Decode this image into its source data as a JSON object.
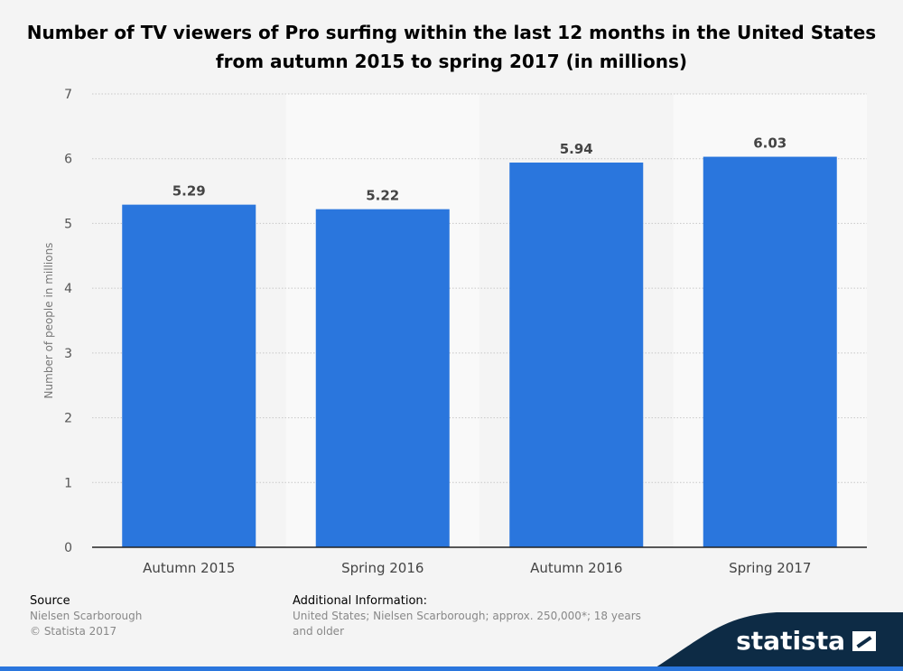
{
  "colors": {
    "bar": "#2a76dd",
    "background": "#f4f4f4",
    "band": "#f9f9f9",
    "footer_wave": "#0d2b45",
    "footer_accent": "#2a76dd"
  },
  "footer": {
    "source_heading": "Source",
    "source_name": "Nielsen Scarborough",
    "copyright": "© Statista 2017",
    "info_heading": "Additional Information:",
    "info_text": "United States; Nielsen Scarborough; approx. 250,000*; 18 years and older",
    "brand": "statista"
  },
  "chart_data": {
    "type": "bar",
    "title": "Number of TV viewers of Pro surfing within the last 12 months in the United States from autumn 2015 to spring 2017 (in millions)",
    "xlabel": "",
    "ylabel": "Number of people in millions",
    "categories": [
      "Autumn 2015",
      "Spring 2016",
      "Autumn 2016",
      "Spring 2017"
    ],
    "values": [
      5.29,
      5.22,
      5.94,
      6.03
    ],
    "value_labels": [
      "5.29",
      "5.22",
      "5.94",
      "6.03"
    ],
    "ylim": [
      0,
      7
    ],
    "yticks": [
      0,
      1,
      2,
      3,
      4,
      5,
      6,
      7
    ],
    "grid": true,
    "legend": "none"
  }
}
